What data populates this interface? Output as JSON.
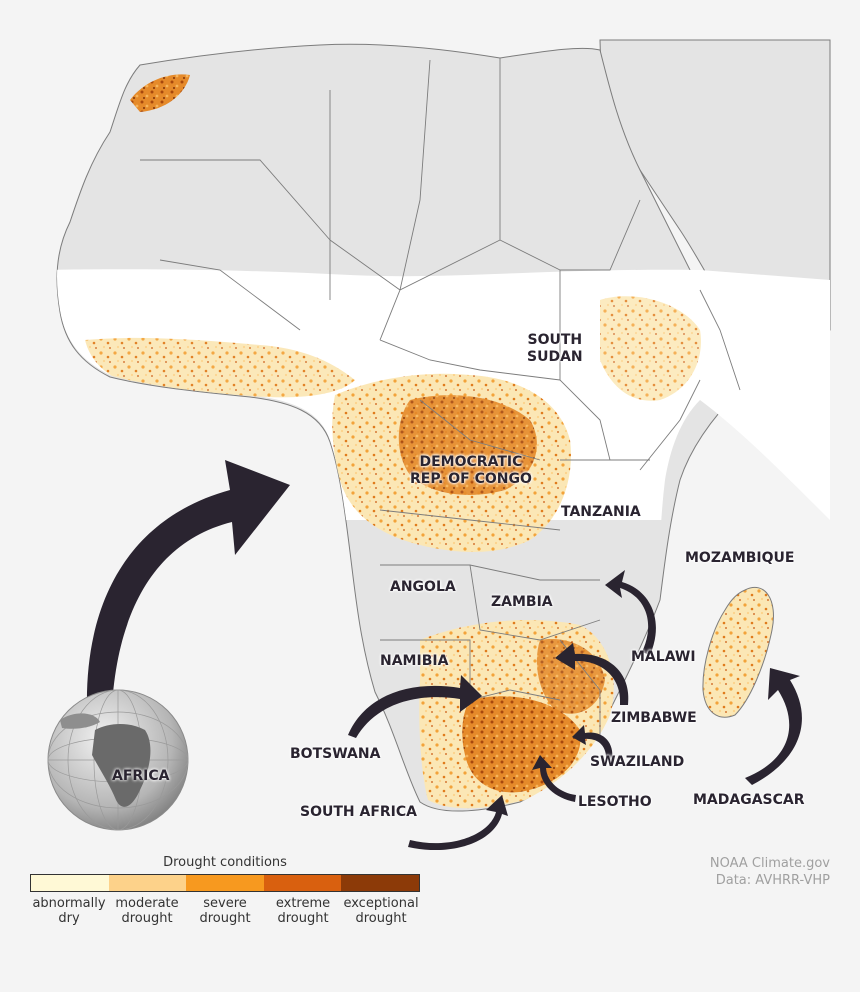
{
  "map": {
    "colors": {
      "background": "#f4f4f4",
      "land_neutral": "#e4e4e4",
      "borders": "#7c7c7c",
      "arrow": "#2a2430"
    },
    "labels": {
      "south_sudan_line1": "SOUTH",
      "south_sudan_line2": "SUDAN",
      "drc_line1": "DEMOCRATIC",
      "drc_line2": "REP. OF CONGO",
      "tanzania": "TANZANIA",
      "mozambique": "MOZAMBIQUE",
      "angola": "ANGOLA",
      "zambia": "ZAMBIA",
      "malawi": "MALAWI",
      "namibia": "NAMIBIA",
      "zimbabwe": "ZIMBABWE",
      "botswana": "BOTSWANA",
      "swaziland": "SWAZILAND",
      "lesotho": "LESOTHO",
      "south_africa": "SOUTH AFRICA",
      "madagascar": "MADAGASCAR"
    },
    "globe_label": "AFRICA"
  },
  "legend": {
    "title": "Drought conditions",
    "items": [
      {
        "label1": "abnormally",
        "label2": "dry",
        "color": "#fff9d6"
      },
      {
        "label1": "moderate",
        "label2": "drought",
        "color": "#fdd28a"
      },
      {
        "label1": "severe",
        "label2": "drought",
        "color": "#f7991f"
      },
      {
        "label1": "extreme",
        "label2": "drought",
        "color": "#d9600f"
      },
      {
        "label1": "exceptional",
        "label2": "drought",
        "color": "#8c3a08"
      }
    ]
  },
  "credit": {
    "line1": "NOAA Climate.gov",
    "line2": "Data: AVHRR-VHP"
  }
}
